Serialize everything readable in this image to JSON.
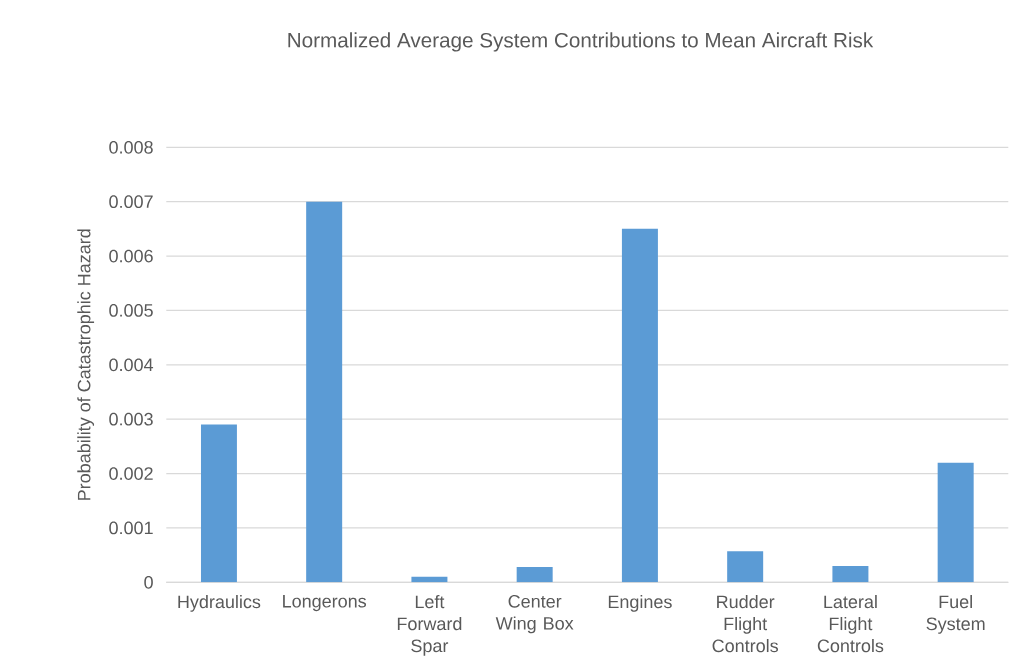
{
  "chart_data": {
    "type": "bar",
    "title": "Normalized Average System Contributions to Mean Aircraft Risk",
    "ylabel": "Probability of Catastrophic Hazard",
    "categories": [
      "Hydraulics",
      "Longerons",
      "Left Forward Spar",
      "Center Wing Box",
      "Engines",
      "Rudder Flight Controls",
      "Lateral Flight Controls",
      "Fuel System"
    ],
    "values": [
      0.0029,
      0.007,
      0.0001,
      0.00028,
      0.0065,
      0.00057,
      0.0003,
      0.0022
    ],
    "color": "#5b9bd5",
    "ylim": [
      0,
      0.008
    ],
    "yticks": [
      0,
      0.001,
      0.002,
      0.003,
      0.004,
      0.005,
      0.006,
      0.007,
      0.008
    ],
    "grid": "y"
  }
}
